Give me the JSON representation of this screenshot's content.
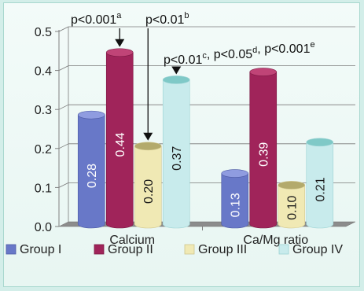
{
  "chart_data": {
    "type": "bar",
    "categories": [
      "Calcium",
      "Ca/Mg ratio"
    ],
    "series": [
      {
        "name": "Group I",
        "values": [
          0.28,
          0.13
        ],
        "labels": [
          "0.28",
          "0.13"
        ]
      },
      {
        "name": "Group II",
        "values": [
          0.44,
          0.39
        ],
        "labels": [
          "0.44",
          "0.39"
        ]
      },
      {
        "name": "Group III",
        "values": [
          0.2,
          0.1
        ],
        "labels": [
          "0.20",
          "0.10"
        ]
      },
      {
        "name": "Group IV",
        "values": [
          0.37,
          0.21
        ],
        "labels": [
          "0.37",
          "0.21"
        ]
      }
    ],
    "ylim": [
      0,
      0.5
    ],
    "yticks": [
      "0.0",
      "0.1",
      "0.2",
      "0.3",
      "0.4",
      "0.5"
    ],
    "grid": true,
    "legend_position": "bottom",
    "annotations": [
      {
        "text": "p<0.001",
        "sup": "a",
        "series": 1,
        "category": 0
      },
      {
        "text": "p<0.01",
        "sup": "b",
        "series": 2,
        "category": 0
      },
      {
        "parts": [
          {
            "t": "p<0.01"
          },
          {
            "t": "c",
            "sup": true
          },
          {
            "t": ", p<0.05"
          },
          {
            "t": "d",
            "sup": true
          },
          {
            "t": ", p<0.001"
          },
          {
            "t": "e",
            "sup": true
          }
        ],
        "series": 3,
        "category": 0
      }
    ]
  },
  "colors": {
    "Group I": {
      "body": "#6878c8",
      "top": "#8f9ce0",
      "dark": "#4d5aa4"
    },
    "Group II": {
      "body": "#a0245a",
      "top": "#c04477",
      "dark": "#7b1843"
    },
    "Group III": {
      "body": "#f0e9b4",
      "top": "#b3aa6c",
      "dark": "#cfc58c"
    },
    "Group IV": {
      "body": "#c8ebec",
      "top": "#7fc9c7",
      "dark": "#9cd3d4"
    },
    "floor": "#8c8c8c",
    "axis": "#808080"
  }
}
